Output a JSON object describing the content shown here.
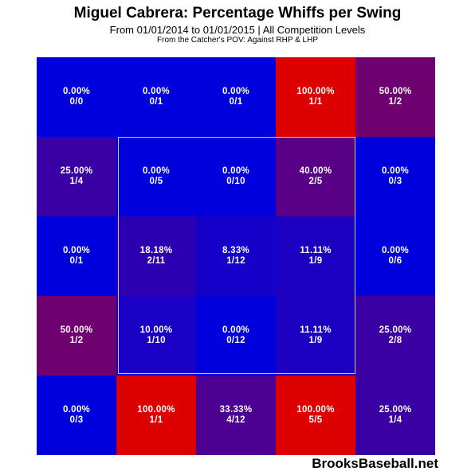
{
  "title": "Miguel Cabrera: Percentage Whiffs per Swing",
  "subtitle": "From 01/01/2014 to 01/01/2015 | All Competition Levels",
  "note": "From the Catcher's POV:   Against RHP & LHP",
  "brand": "BrooksBaseball.net",
  "chart_data": {
    "type": "heatmap",
    "rows": 5,
    "cols": 5,
    "strike_zone": {
      "rows": [
        1,
        3
      ],
      "cols": [
        1,
        3
      ]
    },
    "cells": [
      [
        {
          "pct": "0.00%",
          "frac": "0/0",
          "color": "#0000dd"
        },
        {
          "pct": "0.00%",
          "frac": "0/1",
          "color": "#0000dd"
        },
        {
          "pct": "0.00%",
          "frac": "0/1",
          "color": "#0000dd"
        },
        {
          "pct": "100.00%",
          "frac": "1/1",
          "color": "#dd0000"
        },
        {
          "pct": "50.00%",
          "frac": "1/2",
          "color": "#6e0070"
        }
      ],
      [
        {
          "pct": "25.00%",
          "frac": "1/4",
          "color": "#3a00a4"
        },
        {
          "pct": "0.00%",
          "frac": "0/5",
          "color": "#0000dd"
        },
        {
          "pct": "0.00%",
          "frac": "0/10",
          "color": "#0000dd"
        },
        {
          "pct": "40.00%",
          "frac": "2/5",
          "color": "#580086"
        },
        {
          "pct": "0.00%",
          "frac": "0/3",
          "color": "#0000dd"
        }
      ],
      [
        {
          "pct": "0.00%",
          "frac": "0/1",
          "color": "#0000dd"
        },
        {
          "pct": "18.18%",
          "frac": "2/11",
          "color": "#2c00b2"
        },
        {
          "pct": "8.33%",
          "frac": "1/12",
          "color": "#1500c9"
        },
        {
          "pct": "11.11%",
          "frac": "1/9",
          "color": "#1c00c2"
        },
        {
          "pct": "0.00%",
          "frac": "0/6",
          "color": "#0000dd"
        }
      ],
      [
        {
          "pct": "50.00%",
          "frac": "1/2",
          "color": "#6e0070"
        },
        {
          "pct": "10.00%",
          "frac": "1/10",
          "color": "#1a00c4"
        },
        {
          "pct": "0.00%",
          "frac": "0/12",
          "color": "#0000dd"
        },
        {
          "pct": "11.11%",
          "frac": "1/9",
          "color": "#1c00c2"
        },
        {
          "pct": "25.00%",
          "frac": "2/8",
          "color": "#3a00a4"
        }
      ],
      [
        {
          "pct": "0.00%",
          "frac": "0/3",
          "color": "#0000dd"
        },
        {
          "pct": "100.00%",
          "frac": "1/1",
          "color": "#dd0000"
        },
        {
          "pct": "33.33%",
          "frac": "4/12",
          "color": "#4c0092"
        },
        {
          "pct": "100.00%",
          "frac": "5/5",
          "color": "#dd0000"
        },
        {
          "pct": "25.00%",
          "frac": "1/4",
          "color": "#3a00a4"
        }
      ]
    ]
  }
}
